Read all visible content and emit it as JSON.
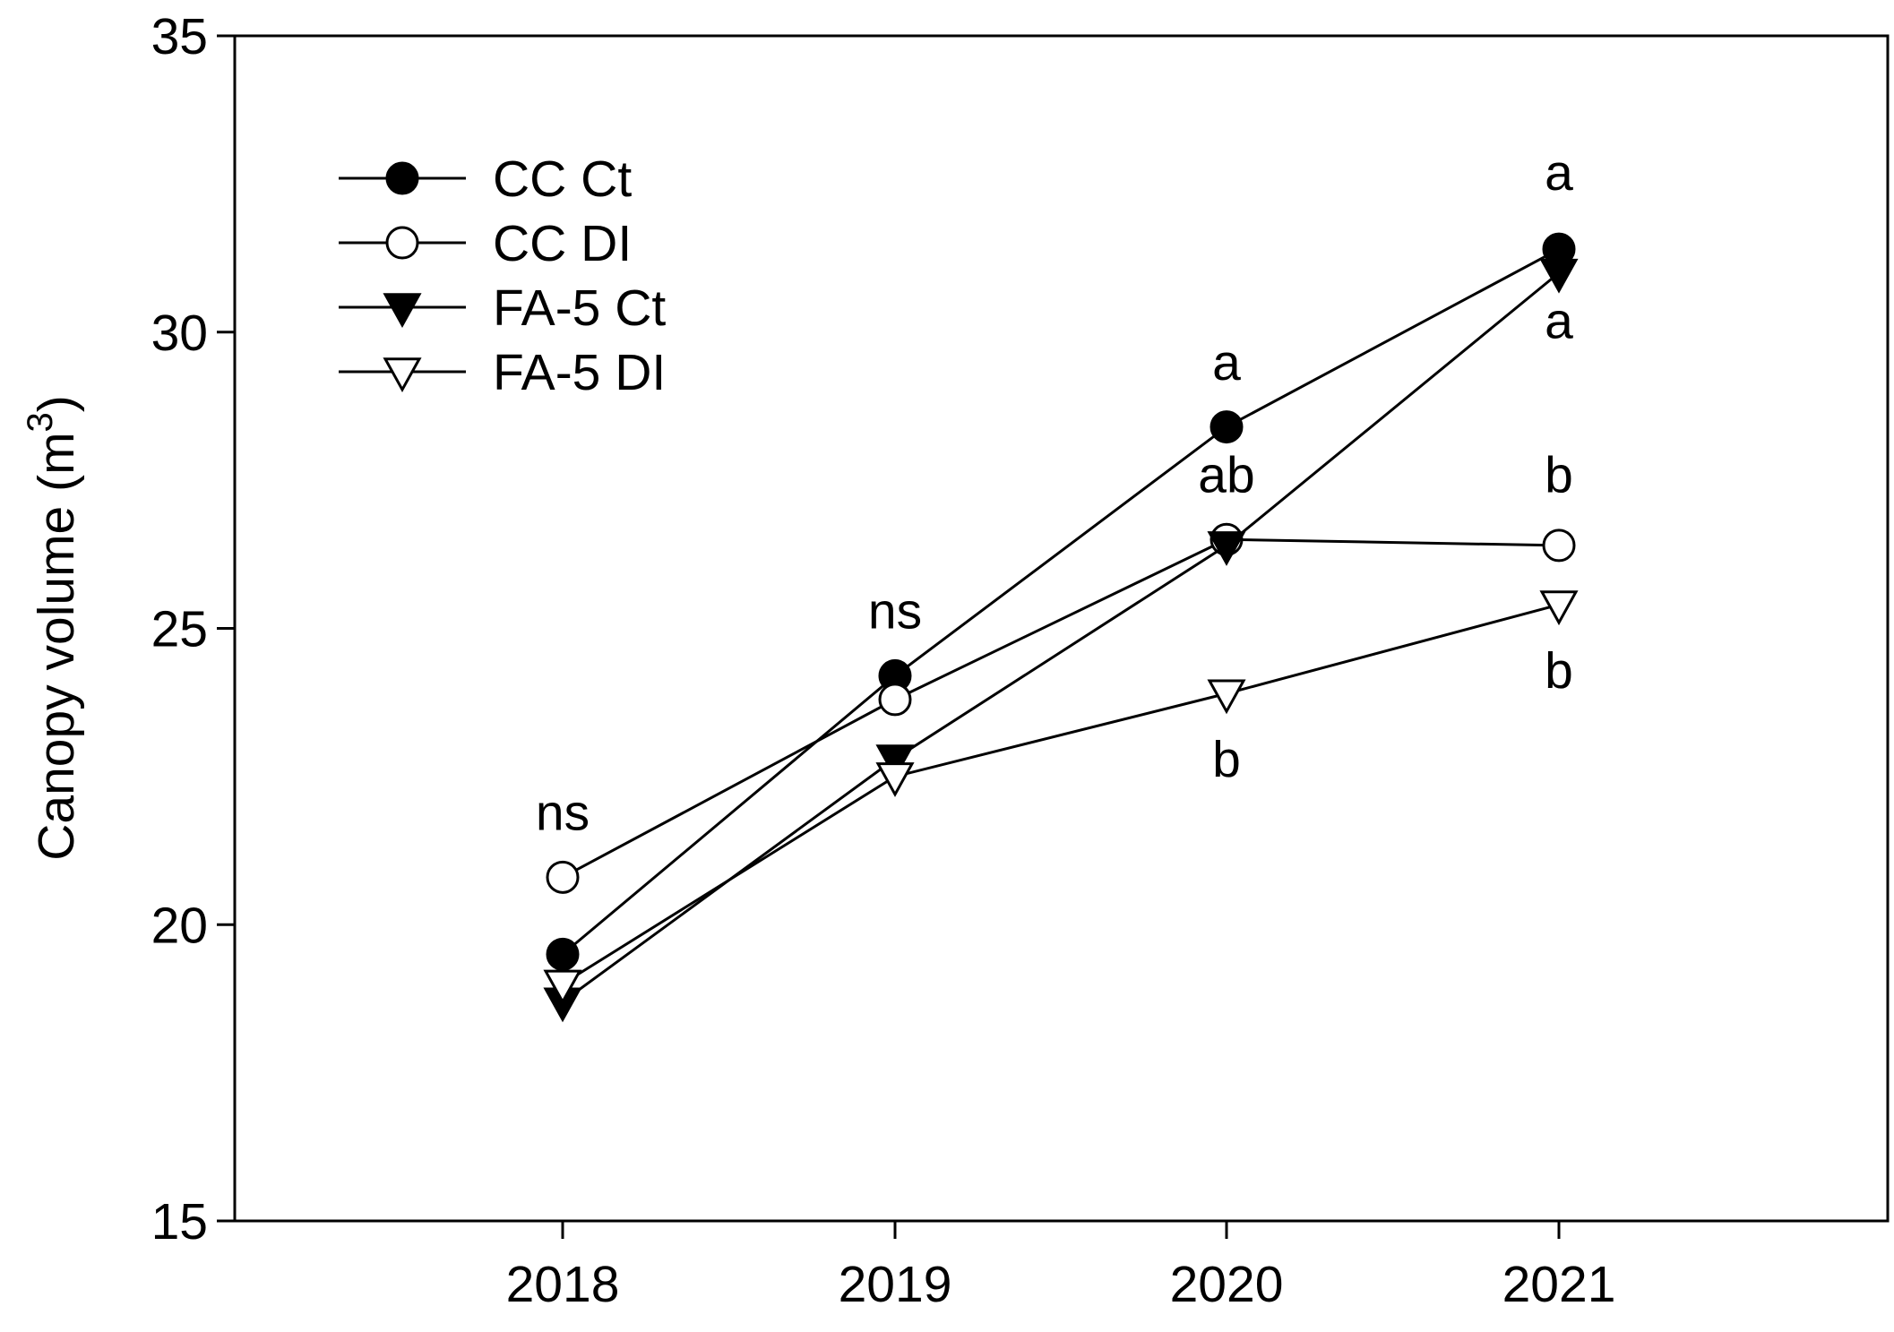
{
  "chart_data": {
    "type": "line",
    "title": "",
    "xlabel": "",
    "ylabel": "Canopy volume (m",
    "ylabel_superscript": "3",
    "ylabel_close": ")",
    "categories": [
      "2018",
      "2019",
      "2020",
      "2021"
    ],
    "ylim": [
      15,
      35
    ],
    "yticks": [
      "15",
      "20",
      "25",
      "30",
      "35"
    ],
    "grid": false,
    "legend_position": "top-left",
    "series": [
      {
        "name": "CC Ct",
        "marker": "circle",
        "filled": true,
        "values": [
          19.5,
          24.2,
          28.4,
          31.4
        ]
      },
      {
        "name": "CC DI",
        "marker": "circle",
        "filled": false,
        "values": [
          20.8,
          23.8,
          26.5,
          26.4
        ]
      },
      {
        "name": "FA-5 Ct",
        "marker": "triangle-down",
        "filled": true,
        "values": [
          18.7,
          22.8,
          26.4,
          31.0
        ]
      },
      {
        "name": "FA-5 DI",
        "marker": "triangle-down",
        "filled": false,
        "values": [
          19.0,
          22.5,
          23.9,
          25.4
        ]
      }
    ],
    "annotations": [
      {
        "text": "ns",
        "category": "2018",
        "y": 21.9
      },
      {
        "text": "ns",
        "category": "2019",
        "y": 25.3
      },
      {
        "text": "a",
        "category": "2020",
        "y": 29.5
      },
      {
        "text": "ab",
        "category": "2020",
        "y": 27.6
      },
      {
        "text": "b",
        "category": "2020",
        "y": 22.8
      },
      {
        "text": "a",
        "category": "2021",
        "y": 32.7
      },
      {
        "text": "a",
        "category": "2021",
        "y": 30.2
      },
      {
        "text": "b",
        "category": "2021",
        "y": 27.6
      },
      {
        "text": "b",
        "category": "2021",
        "y": 24.3
      }
    ]
  },
  "colors": {
    "line": "#000000",
    "background": "#ffffff"
  }
}
